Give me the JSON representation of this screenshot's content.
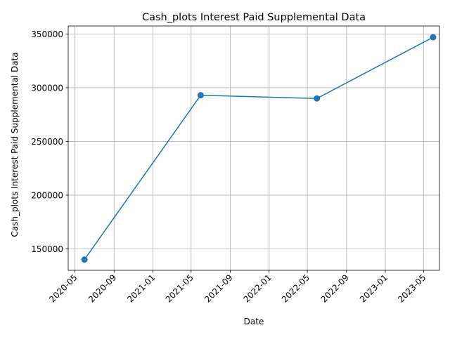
{
  "chart_data": {
    "type": "line",
    "title": "Cash_plots Interest Paid Supplemental Data",
    "xlabel": "Date",
    "ylabel": "Cash_plots Interest Paid Supplemental Data",
    "x": [
      "2020-05-31",
      "2021-05-31",
      "2022-05-31",
      "2023-05-31"
    ],
    "series": [
      {
        "values": [
          140000,
          293000,
          290000,
          347000
        ],
        "color": "#1f77b4"
      }
    ],
    "xlim": [
      "2020-04-10",
      "2023-06-20"
    ],
    "ylim": [
      130000,
      357500
    ],
    "x_ticks": [
      "2020-05",
      "2020-09",
      "2021-01",
      "2021-05",
      "2021-09",
      "2022-01",
      "2022-05",
      "2022-09",
      "2023-01",
      "2023-05"
    ],
    "y_ticks": [
      150000,
      200000,
      250000,
      300000,
      350000
    ],
    "grid": true,
    "marker": "circle"
  }
}
